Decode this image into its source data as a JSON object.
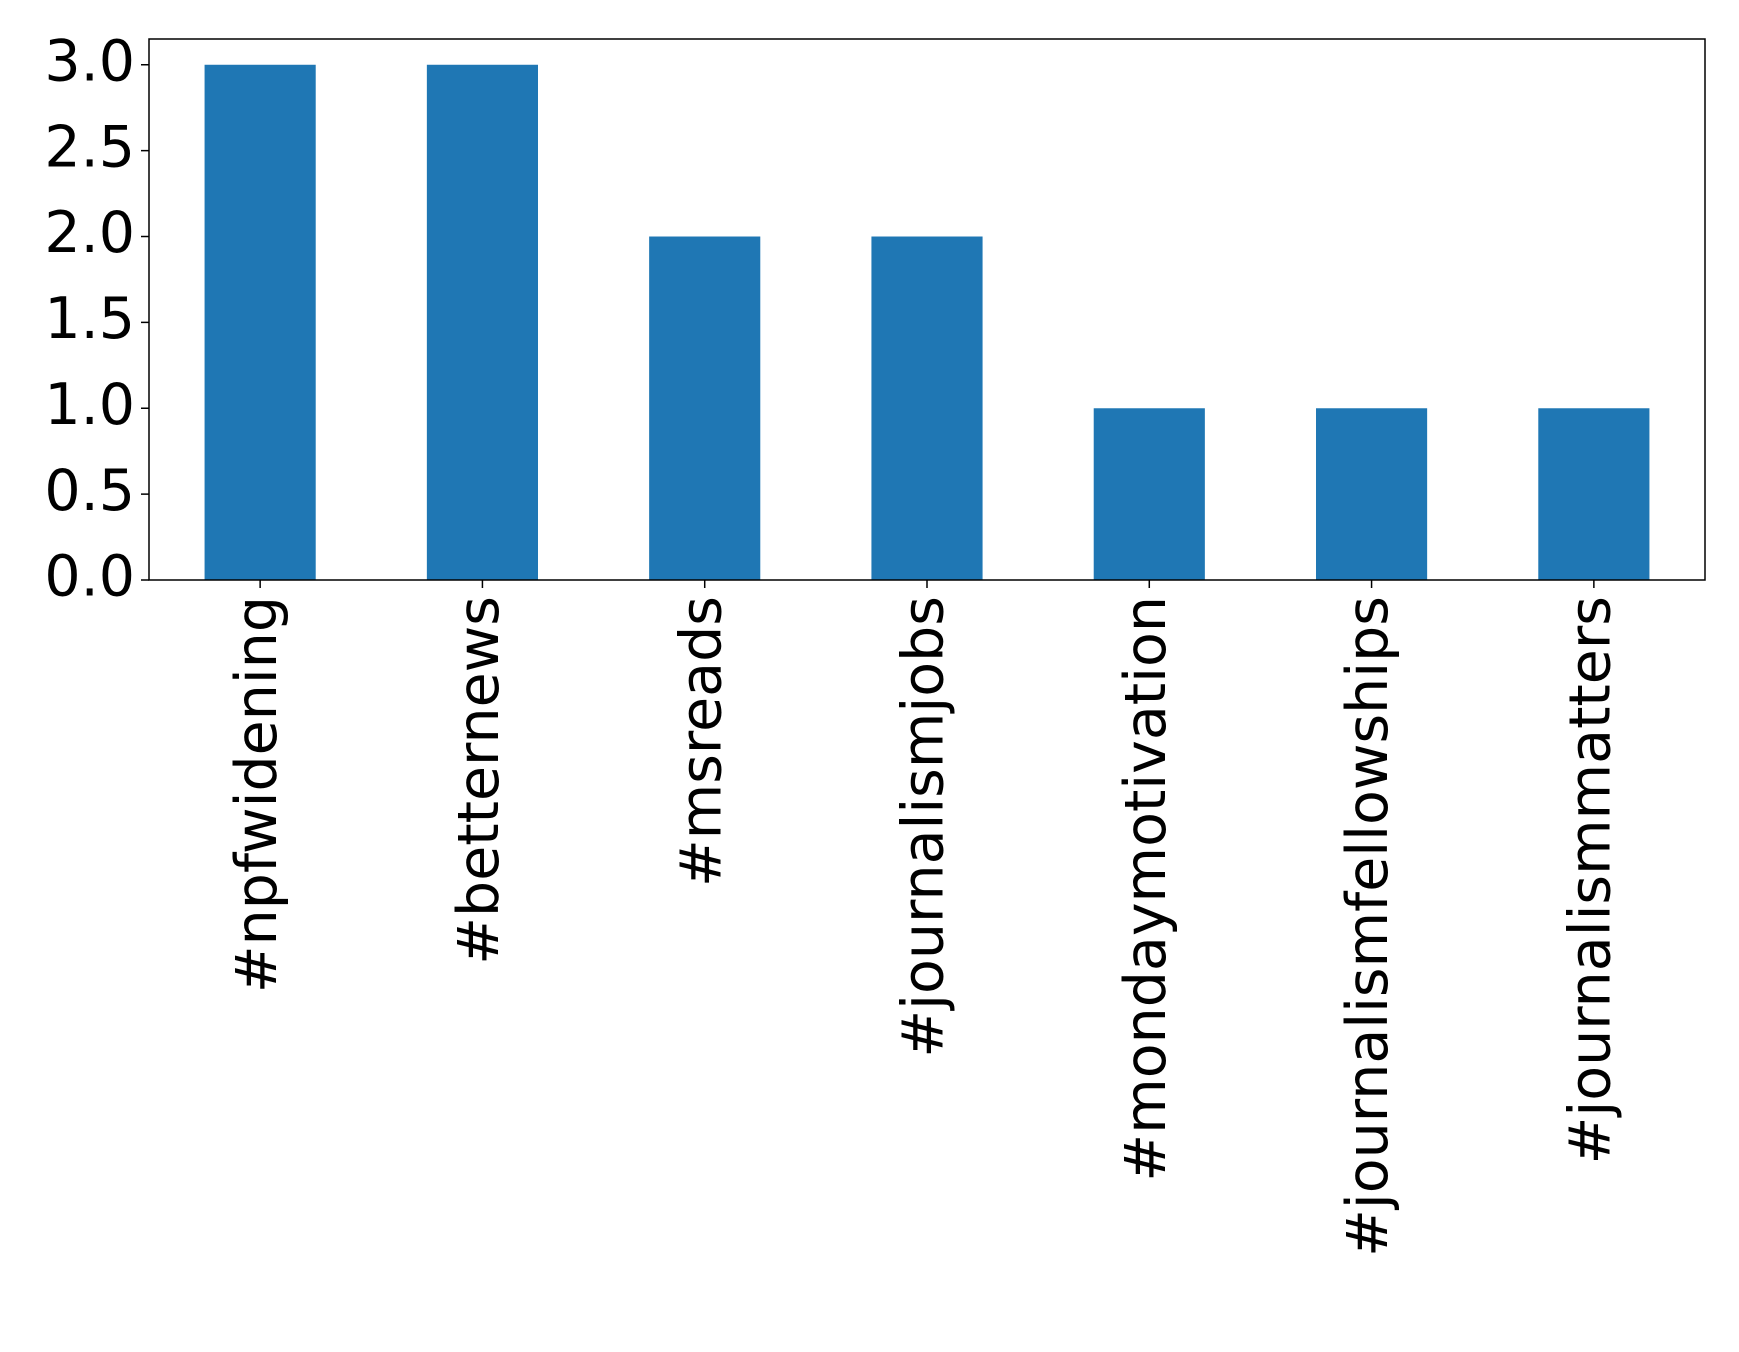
{
  "chart_data": {
    "type": "bar",
    "categories": [
      "#npfwidening",
      "#betternews",
      "#msreads",
      "#journalismjobs",
      "#mondaymotivation",
      "#journalismfellowships",
      "#journalismmatters"
    ],
    "values": [
      3,
      3,
      2,
      2,
      1,
      1,
      1
    ],
    "color": "#1f77b4",
    "ylim": [
      0,
      3.15
    ],
    "yticks": [
      {
        "value": 0,
        "label": "0.0"
      },
      0.5,
      {
        "value": 1,
        "label": "1.0"
      },
      1.5,
      {
        "value": 2,
        "label": "2.0"
      },
      2.5,
      {
        "value": 3,
        "label": "3.0"
      }
    ],
    "grid": false
  }
}
